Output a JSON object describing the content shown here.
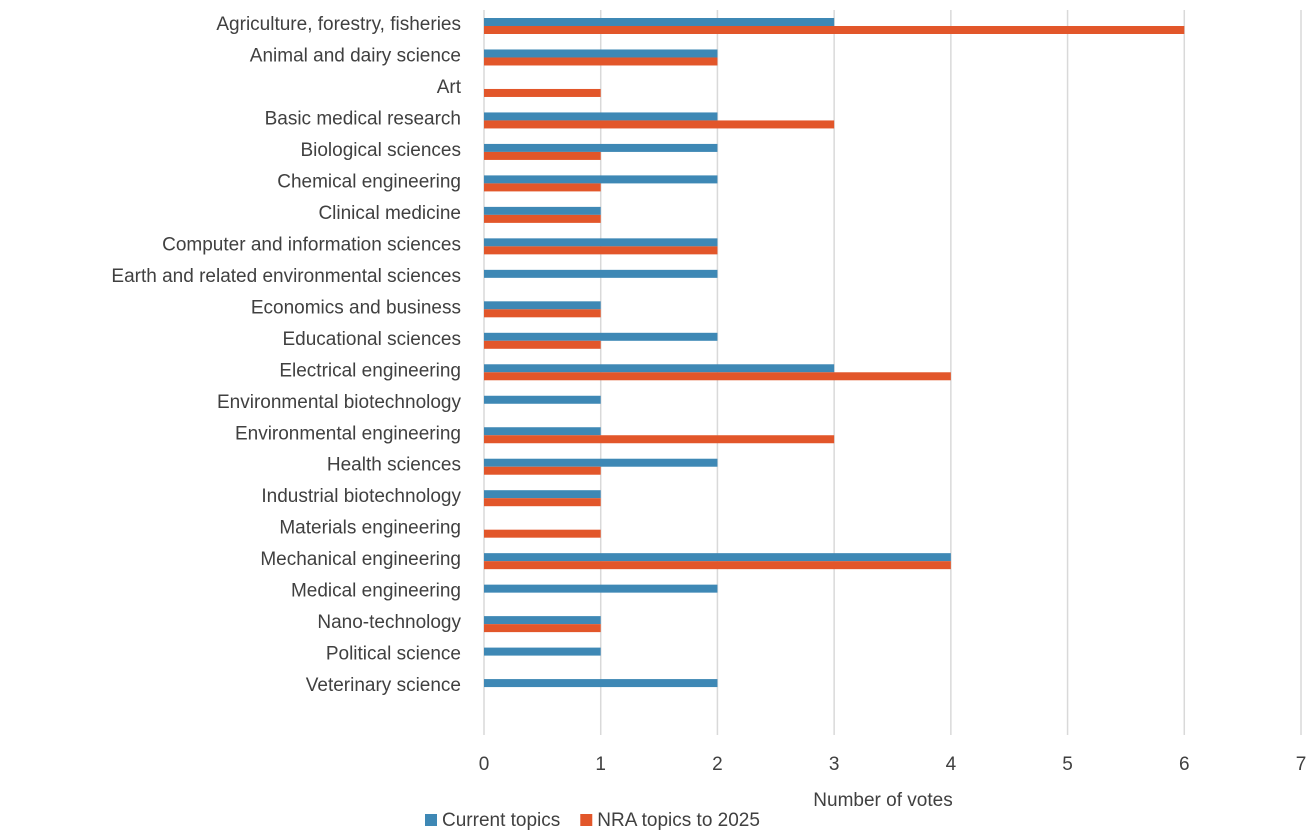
{
  "chart_data": {
    "type": "barh",
    "x_label": "Number of votes",
    "categories": [
      "Agriculture, forestry, fisheries ",
      "Animal and dairy science",
      "Art",
      "Basic medical research",
      "Biological sciences",
      "Chemical engineering",
      "Clinical medicine",
      "Computer and information sciences",
      "Earth and related environmental sciences",
      "Economics and business",
      "Educational sciences ",
      "Electrical engineering",
      "Environmental biotechnology",
      "Environmental engineering",
      "Health sciences",
      "Industrial biotechnology",
      "Materials engineering",
      "Mechanical engineering",
      "Medical engineering",
      "Nano-technology",
      "Political science",
      "Veterinary science"
    ],
    "series": [
      {
        "name": "Current topics",
        "color": "#3e88b5",
        "values": [
          3,
          2,
          0,
          2,
          2,
          2,
          1,
          2,
          2,
          1,
          2,
          3,
          1,
          1,
          2,
          1,
          0,
          4,
          2,
          1,
          1,
          2
        ]
      },
      {
        "name": "NRA topics to 2025",
        "color": "#e2562a",
        "values": [
          6,
          2,
          1,
          3,
          1,
          1,
          1,
          2,
          0,
          1,
          1,
          4,
          0,
          3,
          1,
          1,
          1,
          4,
          0,
          1,
          0,
          0
        ]
      }
    ],
    "xlim": [
      0,
      7
    ],
    "xticks": [
      0,
      1,
      2,
      3,
      4,
      5,
      6,
      7
    ],
    "grid": true,
    "legend": "bottom"
  }
}
